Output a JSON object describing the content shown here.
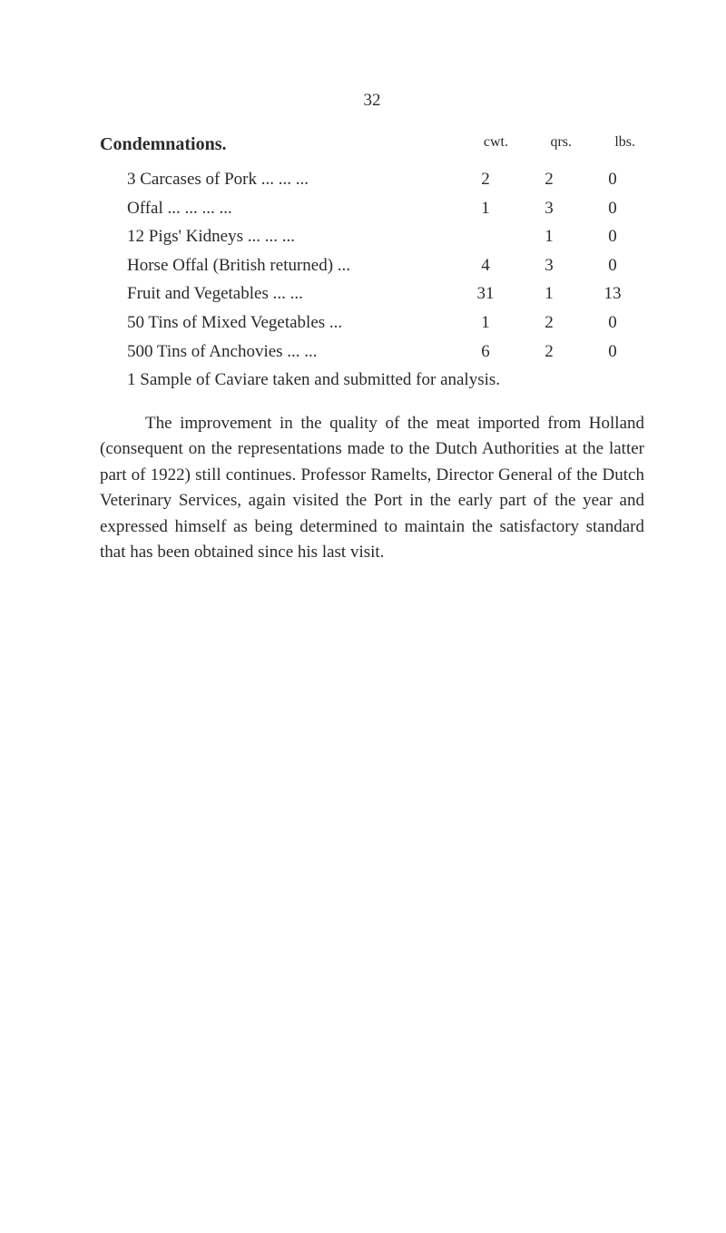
{
  "page_number": "32",
  "heading": "Condemnations.",
  "columns": {
    "col1": "cwt.",
    "col2": "qrs.",
    "col3": "lbs."
  },
  "rows": [
    {
      "label": "3 Carcases of Pork ...       ...     ...",
      "c1": "2",
      "c2": "2",
      "c3": "0"
    },
    {
      "label": "Offal              ...       ...       ...     ...",
      "c1": "1",
      "c2": "3",
      "c3": "0"
    },
    {
      "label": "12 Pigs' Kidneys       ...       ...     ...",
      "c1": "",
      "c2": "1",
      "c3": "0"
    },
    {
      "label": "Horse Offal (British returned)    ...",
      "c1": "4",
      "c2": "3",
      "c3": "0"
    },
    {
      "label": "Fruit and Vegetables         ...     ...",
      "c1": "31",
      "c2": "1",
      "c3": "13"
    },
    {
      "label": "50 Tins of Mixed Vegetables      ...",
      "c1": "1",
      "c2": "2",
      "c3": "0"
    },
    {
      "label": "500 Tins of Anchovies        ...     ...",
      "c1": "6",
      "c2": "2",
      "c3": "0"
    }
  ],
  "note": "1 Sample of Caviare taken and submitted for analysis.",
  "paragraph": "The improvement in the quality of the meat imported from Holland (consequent on the representations made to the Dutch Authorities at the latter part of 1922) still continues. Professor Ramelts, Director General of the Dutch Veterinary Services, again visited the Port in the early part of the year and expressed himself as being determined to maintain the satisfactory standard that has been obtained since his last visit."
}
